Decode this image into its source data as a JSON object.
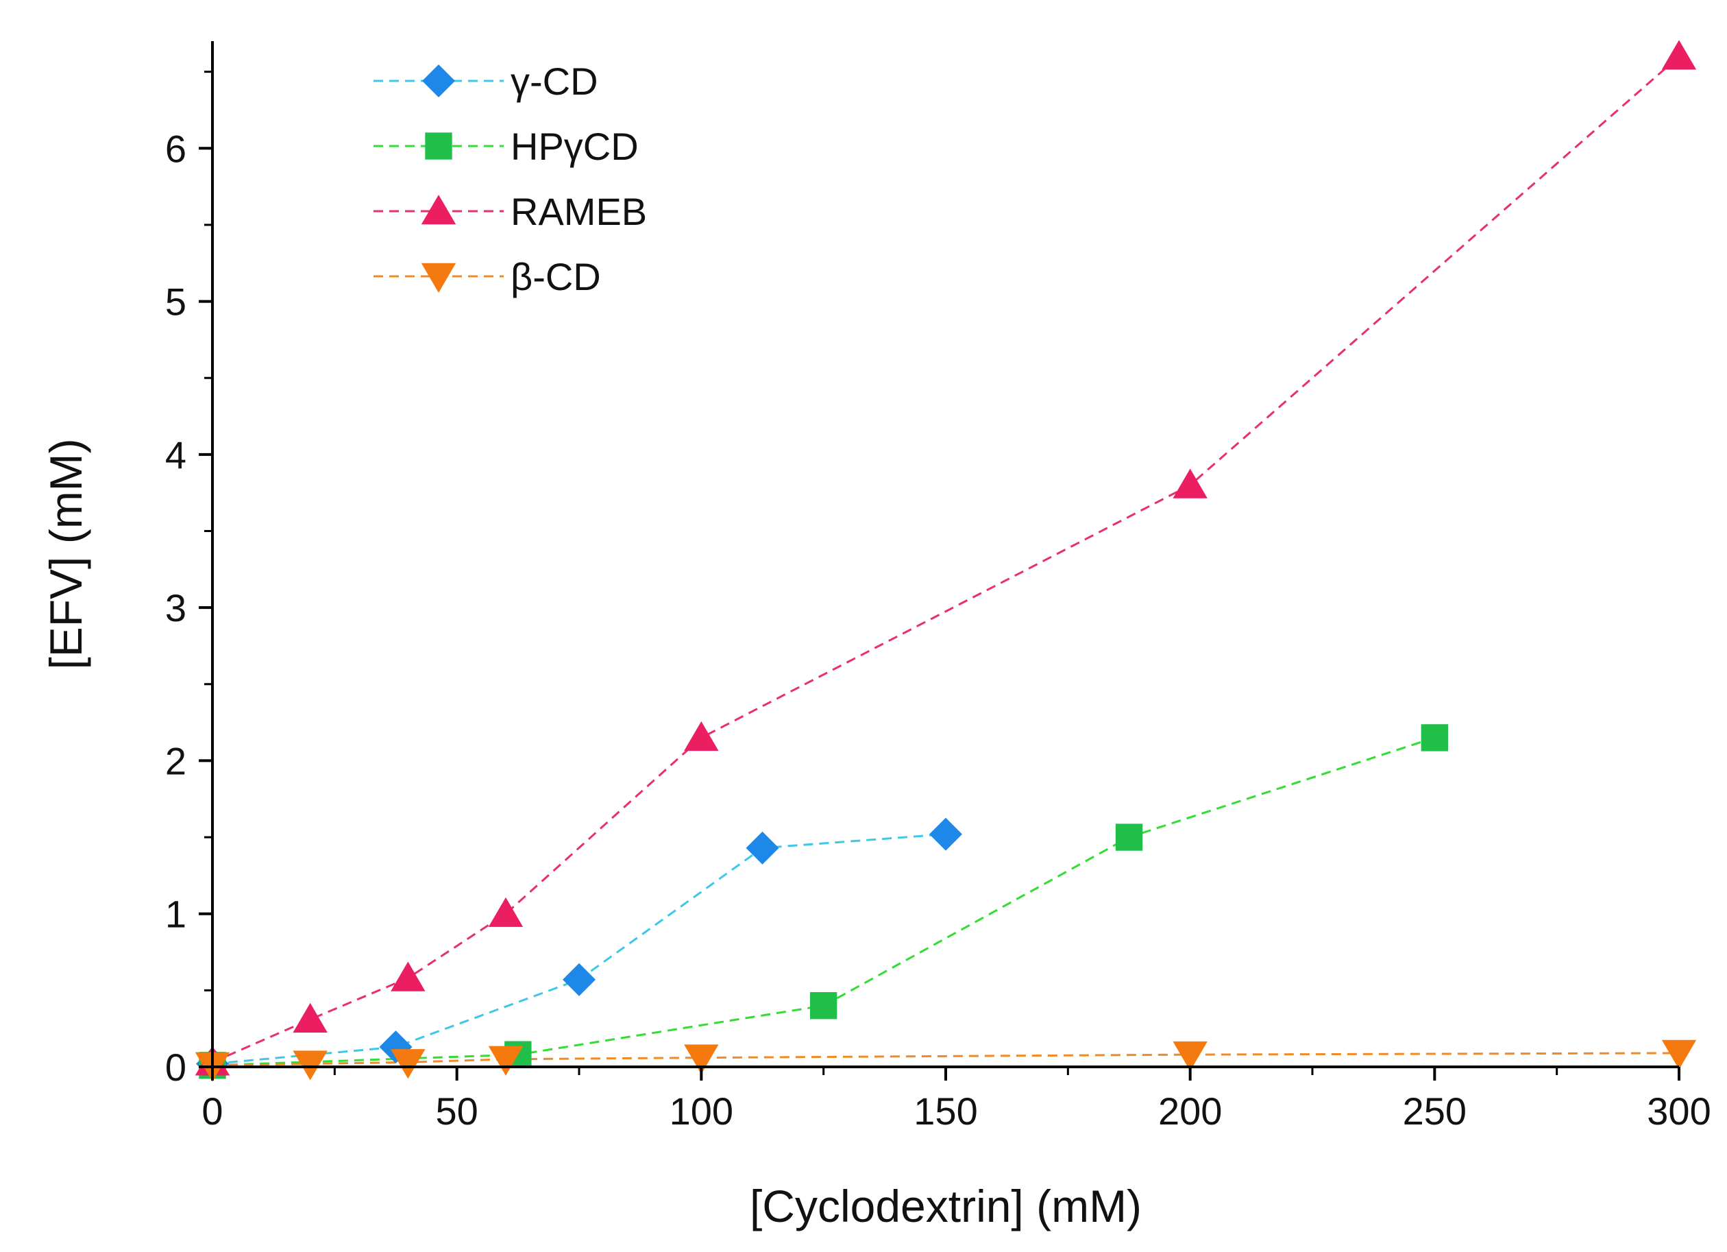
{
  "chart_data": {
    "type": "line",
    "title": "",
    "xlabel": "[Cyclodextrin] (mM)",
    "ylabel": "[EFV] (mM)",
    "xlim": [
      0,
      300
    ],
    "ylim": [
      0,
      6.7
    ],
    "xticks": [
      0,
      50,
      100,
      150,
      200,
      250,
      300
    ],
    "yticks": [
      0,
      1,
      2,
      3,
      4,
      5,
      6
    ],
    "grid": false,
    "legend_position": "top-left",
    "series": [
      {
        "name": "γ-CD",
        "marker": "diamond",
        "line_color": "#3ec8e8",
        "marker_color": "#1e88e8",
        "x": [
          0,
          37.5,
          75,
          112.5,
          150
        ],
        "y": [
          0.02,
          0.13,
          0.57,
          1.43,
          1.52
        ]
      },
      {
        "name": "HPγCD",
        "marker": "square",
        "line_color": "#33dd33",
        "marker_color": "#1fbf4a",
        "x": [
          0,
          62.5,
          125,
          187.5,
          250
        ],
        "y": [
          0.01,
          0.08,
          0.4,
          1.5,
          2.15
        ]
      },
      {
        "name": "RAMEB",
        "marker": "triangle-up",
        "line_color": "#e8306a",
        "marker_color": "#ea1e60",
        "x": [
          0,
          20,
          40,
          60,
          100,
          200,
          300
        ],
        "y": [
          0.03,
          0.31,
          0.58,
          1.0,
          2.15,
          3.8,
          6.6
        ]
      },
      {
        "name": "β-CD",
        "marker": "triangle-down",
        "line_color": "#f08a24",
        "marker_color": "#f47a10",
        "x": [
          0,
          20,
          40,
          60,
          100,
          200,
          300
        ],
        "y": [
          0.01,
          0.02,
          0.03,
          0.05,
          0.06,
          0.08,
          0.09
        ]
      }
    ]
  }
}
